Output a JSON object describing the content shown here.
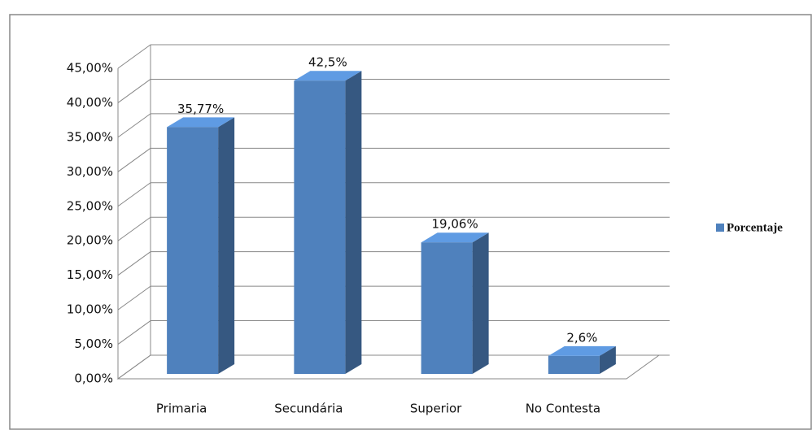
{
  "chart_data": {
    "type": "bar3d",
    "categories": [
      "Primaria",
      "Secundária",
      "Superior",
      "No Contesta"
    ],
    "series": [
      {
        "name": "Porcentaje",
        "color": "#4f81bd",
        "values": [
          35.77,
          42.5,
          19.06,
          2.6
        ],
        "value_labels": [
          "35,77%",
          "42,5%",
          "19,06%",
          "2,6%"
        ]
      }
    ],
    "ylim": [
      0,
      45
    ],
    "yticks": [
      {
        "value": 0,
        "label": "0,00%"
      },
      {
        "value": 5,
        "label": "5,00%"
      },
      {
        "value": 10,
        "label": "10,00%"
      },
      {
        "value": 15,
        "label": "15,00%"
      },
      {
        "value": 20,
        "label": "20,00%"
      },
      {
        "value": 25,
        "label": "25,00%"
      },
      {
        "value": 30,
        "label": "30,00%"
      },
      {
        "value": 35,
        "label": "35,00%"
      },
      {
        "value": 40,
        "label": "40,00%"
      },
      {
        "value": 45,
        "label": "45,00%"
      }
    ],
    "grid": true,
    "legend": "right"
  }
}
